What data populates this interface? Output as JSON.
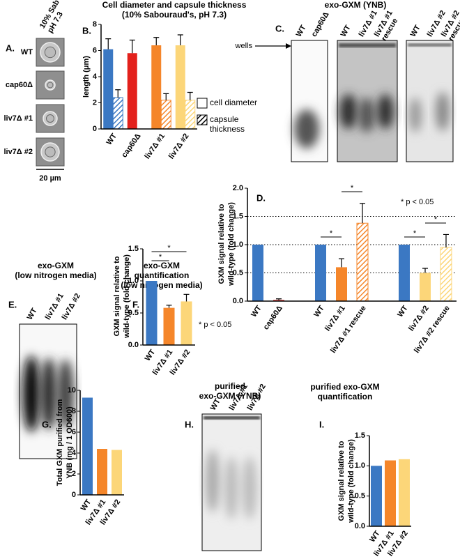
{
  "figure": {
    "panel_labels": [
      "A.",
      "B.",
      "C.",
      "D.",
      "E.",
      "F.",
      "G.",
      "H.",
      "I."
    ],
    "panel_a": {
      "header": [
        "10% Sab",
        "pH 7.3"
      ],
      "rows": [
        "WT",
        "cap60Δ",
        "liv7Δ #1",
        "liv7Δ #2"
      ],
      "scale_bar": "20 µm"
    },
    "panel_c": {
      "title": "exo-GXM (YNB)",
      "marker": "wells",
      "blots": [
        [
          "WT",
          "cap60Δ"
        ],
        [
          "WT",
          "liv7Δ #1",
          [
            "liv7Δ #1",
            "rescue"
          ]
        ],
        [
          "WT",
          "liv7Δ #2",
          [
            "liv7Δ #2",
            "rescue"
          ]
        ]
      ]
    },
    "panel_e": {
      "title": [
        "exo-GXM",
        "(low nitrogen media)"
      ],
      "lanes": [
        "WT",
        "liv7Δ #1",
        "liv7Δ #2"
      ]
    },
    "panel_h": {
      "title": [
        "purified",
        "exo-GXM (YNB)"
      ],
      "lanes": [
        "WT",
        "liv7Δ #1",
        "liv7Δ #2"
      ]
    }
  },
  "chart_data": [
    {
      "type": "bar",
      "title": [
        "Cell diameter and capsule thickness",
        "(10% Sabouraud's, pH 7.3)"
      ],
      "ylabel": "length (μm)",
      "categories": [
        "WT",
        "cap60Δ",
        "liv7Δ #1",
        "liv7Δ #2"
      ],
      "colors": [
        "#3b78c3",
        "#e3211c",
        "#f5862a",
        "#fcd679"
      ],
      "ylim": [
        0,
        8
      ],
      "yticks": [
        0,
        2,
        4,
        6,
        8
      ],
      "series": [
        {
          "name": "cell diameter",
          "hatch": false,
          "values": [
            6.1,
            5.8,
            6.4,
            6.4
          ],
          "errors": [
            0.8,
            1.0,
            0.6,
            0.8
          ]
        },
        {
          "name": [
            "capsule",
            "thickness"
          ],
          "hatch": true,
          "values": [
            2.4,
            null,
            2.2,
            2.2
          ],
          "errors": [
            0.6,
            null,
            0.5,
            0.6
          ]
        }
      ]
    },
    {
      "type": "bar",
      "ylabel": [
        "GXM signal relative to",
        "wild-type (fold change)"
      ],
      "categories": [
        "WT",
        "cap60Δ",
        null,
        "WT",
        "liv7Δ #1",
        "liv7Δ #1 rescue",
        null,
        "WT",
        "liv7Δ #2",
        "liv7Δ #2 rescue"
      ],
      "colors": [
        "#3b78c3",
        "#e3211c",
        null,
        "#3b78c3",
        "#f5862a",
        "#f5862a",
        null,
        "#3b78c3",
        "#fcd679",
        "#fcd679"
      ],
      "hatch": [
        false,
        false,
        false,
        false,
        false,
        true,
        false,
        false,
        false,
        true
      ],
      "ylim": [
        0,
        2
      ],
      "yticks": [
        {
          "value": 0,
          "label": "0.0"
        },
        0.5,
        {
          "value": 1,
          "label": "1.0"
        },
        1.5,
        {
          "value": 2,
          "label": "2.0"
        }
      ],
      "reflines": [
        0.5,
        1,
        1.5
      ],
      "series": [
        {
          "values": [
            1,
            0.02,
            null,
            1,
            0.6,
            1.38,
            null,
            1,
            0.5,
            0.95
          ],
          "errors": [
            null,
            0.02,
            null,
            null,
            0.15,
            0.35,
            null,
            null,
            0.08,
            0.23
          ]
        }
      ],
      "annotations": [
        "*",
        "*",
        "*",
        "*",
        "* p < 0.05"
      ]
    },
    {
      "type": "bar",
      "title": [
        "exo-GXM",
        "quantification",
        "(low nitrogen media)"
      ],
      "ylabel": [
        "GXM signal relative to",
        "wild-type (fold change)"
      ],
      "categories": [
        "WT",
        "liv7Δ #1",
        "liv7Δ #2"
      ],
      "colors": [
        "#3b78c3",
        "#f5862a",
        "#fcd679"
      ],
      "ylim": [
        0,
        1.5
      ],
      "yticks": [
        {
          "value": 0,
          "label": "0.0"
        },
        0.5,
        {
          "value": 1,
          "label": "1.0"
        },
        1.5
      ],
      "series": [
        {
          "values": [
            1,
            0.58,
            0.68
          ],
          "errors": [
            null,
            0.04,
            0.11
          ]
        }
      ],
      "annotations": [
        "*",
        "*",
        "* p < 0.05"
      ]
    },
    {
      "type": "bar",
      "ylabel": [
        "Total GXM purified from",
        "YNB (mg / 1 OD600)"
      ],
      "categories": [
        "WT",
        "liv7Δ #1",
        "liv7Δ #2"
      ],
      "colors": [
        "#3b78c3",
        "#f5862a",
        "#fcd679"
      ],
      "ylim": [
        0,
        10
      ],
      "yticks": [
        0,
        2,
        4,
        6,
        8,
        10
      ],
      "series": [
        {
          "values": [
            9.3,
            4.4,
            4.3
          ]
        }
      ]
    },
    {
      "type": "bar",
      "title": [
        "purified exo-GXM",
        "quantification"
      ],
      "ylabel": [
        "GXM signal relative to",
        "wild-type (fold change)"
      ],
      "categories": [
        "WT",
        "liv7Δ #1",
        "liv7Δ #2"
      ],
      "colors": [
        "#3b78c3",
        "#f5862a",
        "#fcd679"
      ],
      "ylim": [
        0,
        1.5
      ],
      "yticks": [
        {
          "value": 0,
          "label": "0.0"
        },
        0.5,
        {
          "value": 1,
          "label": "1.0"
        },
        1.5
      ],
      "series": [
        {
          "values": [
            1,
            1.09,
            1.11
          ]
        }
      ]
    }
  ]
}
